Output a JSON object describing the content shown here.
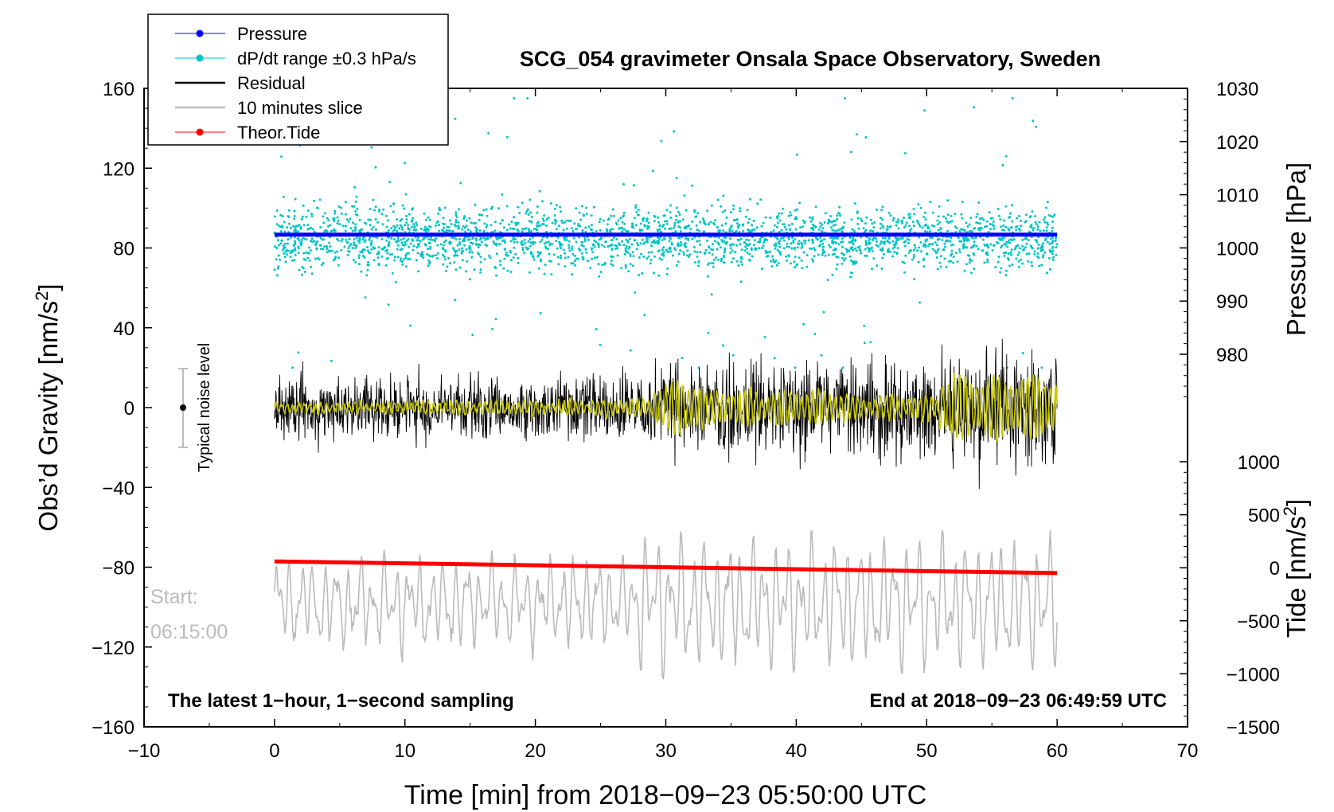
{
  "chart_data": {
    "type": "line",
    "title": "SCG_054 gravimeter Onsala Space Observatory, Sweden",
    "xlabel": "Time [min] from 2018−09−23 05:50:00 UTC",
    "ylabel_main": "Obs’d Gravity [nm/s",
    "ylabel_main_sup": "2",
    "ylabel_main_tail": "]",
    "ylabel_pressure": "Pressure [hPa]",
    "ylabel_tide": "Tide [nm/s",
    "ylabel_tide_sup": "2",
    "ylabel_tide_tail": "]",
    "xlim": [
      -10,
      70
    ],
    "ylim": [
      -160,
      160
    ],
    "x_ticks": [
      "−10",
      "0",
      "10",
      "20",
      "30",
      "40",
      "50",
      "60",
      "70"
    ],
    "x_tick_values": [
      -10,
      0,
      10,
      20,
      30,
      40,
      50,
      60,
      70
    ],
    "y_ticks": [
      "160",
      "120",
      "80",
      "40",
      "0",
      "−40",
      "−80",
      "−120",
      "−160"
    ],
    "y_tick_values": [
      160,
      120,
      80,
      40,
      0,
      -40,
      -80,
      -120,
      -160
    ],
    "pressure_ticks": [
      "1030",
      "1020",
      "1010",
      "1000",
      "990",
      "980"
    ],
    "pressure_tick_values": [
      1030,
      1020,
      1010,
      1000,
      990,
      980
    ],
    "pressure_range": [
      970,
      1030
    ],
    "tide_ticks": [
      "1000",
      "500",
      "0",
      "−500",
      "−1000",
      "−1500"
    ],
    "tide_tick_values": [
      1000,
      500,
      0,
      -500,
      -1000,
      -1500
    ],
    "tide_range": [
      -1500,
      1000
    ],
    "legend_position": "top-left",
    "legend": [
      {
        "label": "Pressure",
        "color": "#0000ff",
        "style": "line-dot"
      },
      {
        "label": "dP/dt range ±0.3 hPa/s",
        "color": "#00c5c5",
        "style": "line-dot"
      },
      {
        "label": "Residual",
        "color": "#000000",
        "style": "line"
      },
      {
        "label": "10 minutes slice",
        "color": "#bbbbbb",
        "style": "line"
      },
      {
        "label": "Theor.Tide",
        "color": "#ff0000",
        "style": "line-dot"
      }
    ],
    "series": {
      "pressure": {
        "name": "Pressure",
        "x_range": [
          0,
          60
        ],
        "value_hpa": 1002.5,
        "color": "#0000ff"
      },
      "dpdt": {
        "name": "dP/dt range ±0.3 hPa/s",
        "x_range": [
          0,
          60
        ],
        "center": 85,
        "spread": 20,
        "color": "#00c5c5"
      },
      "residual": {
        "name": "Residual",
        "x_range": [
          0,
          60
        ],
        "amplitude_first_half": 18,
        "amplitude_second_half": 32,
        "color": "#000000"
      },
      "slice": {
        "name": "10 minutes slice",
        "x_range": [
          0,
          60
        ],
        "center": -98,
        "amplitude": 25,
        "color": "#bbbbbb"
      },
      "tide": {
        "name": "Theor.Tide",
        "x_range": [
          0,
          60
        ],
        "values_nm_s2": [
          60,
          -50
        ],
        "color": "#ff0000"
      },
      "filtered": {
        "name": "filtered residual",
        "x_range": [
          0,
          60
        ],
        "color": "#c8c800"
      }
    },
    "noise_bar": {
      "label": "Typical noise level",
      "x": -7,
      "center": 0,
      "half_range": 20
    },
    "annotations": {
      "start_label": "Start:",
      "start_time": "06:15:00",
      "bottom_left": "The latest 1−hour, 1−second sampling",
      "bottom_right": "End at 2018−09−23 06:49:59 UTC"
    }
  }
}
